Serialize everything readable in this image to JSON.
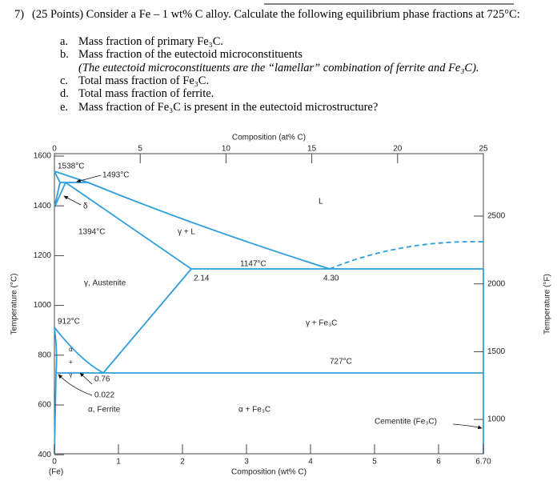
{
  "question": {
    "number": "7)",
    "text": "(25 Points) Consider a Fe – 1 wt% C alloy. Calculate the following equilibrium phase fractions at 725°C:"
  },
  "items": [
    {
      "letter": "a.",
      "text": "Mass fraction of primary Fe₃C."
    },
    {
      "letter": "b.",
      "text": "Mass fraction of the eutectoid microconstituents",
      "note": "(The eutectoid microconstituents are the “lamellar” combination of ferrite and Fe₃C)."
    },
    {
      "letter": "c.",
      "text": "Total mass fraction of Fe₃C."
    },
    {
      "letter": "d.",
      "text": "Total mass fraction of ferrite."
    },
    {
      "letter": "e.",
      "text": "Mass fraction of Fe₃C is present in the eutectoid microstructure?"
    }
  ],
  "figure": {
    "top_axis_label": "Composition (at% C)",
    "top_ticks": [
      "0",
      "5",
      "10",
      "15",
      "20",
      "25"
    ],
    "bottom_axis_label": "Composition (wt% C)",
    "bottom_ticks": [
      "0",
      "1",
      "2",
      "3",
      "4",
      "5",
      "6",
      "6.70"
    ],
    "bottom_origin": "(Fe)",
    "left_axis_label": "Temperature (°C)",
    "left_ticks": [
      "1600",
      "1400",
      "1200",
      "1000",
      "800",
      "600",
      "400"
    ],
    "right_axis_label": "Temperature (°F)",
    "right_ticks": [
      "2500",
      "2000",
      "1500",
      "1000"
    ],
    "labels": [
      "1538°C",
      "1493°C",
      "δ",
      "L",
      "1394°C",
      "γ + L",
      "1147°C",
      "2.14",
      "4.30",
      "γ, Austenite",
      "912°C",
      "γ + Fe₃C",
      "α + γ",
      "727°C",
      "0.76",
      "0.022",
      "α, Ferrite",
      "α + Fe₃C",
      "Cementite (Fe₃C)"
    ]
  }
}
